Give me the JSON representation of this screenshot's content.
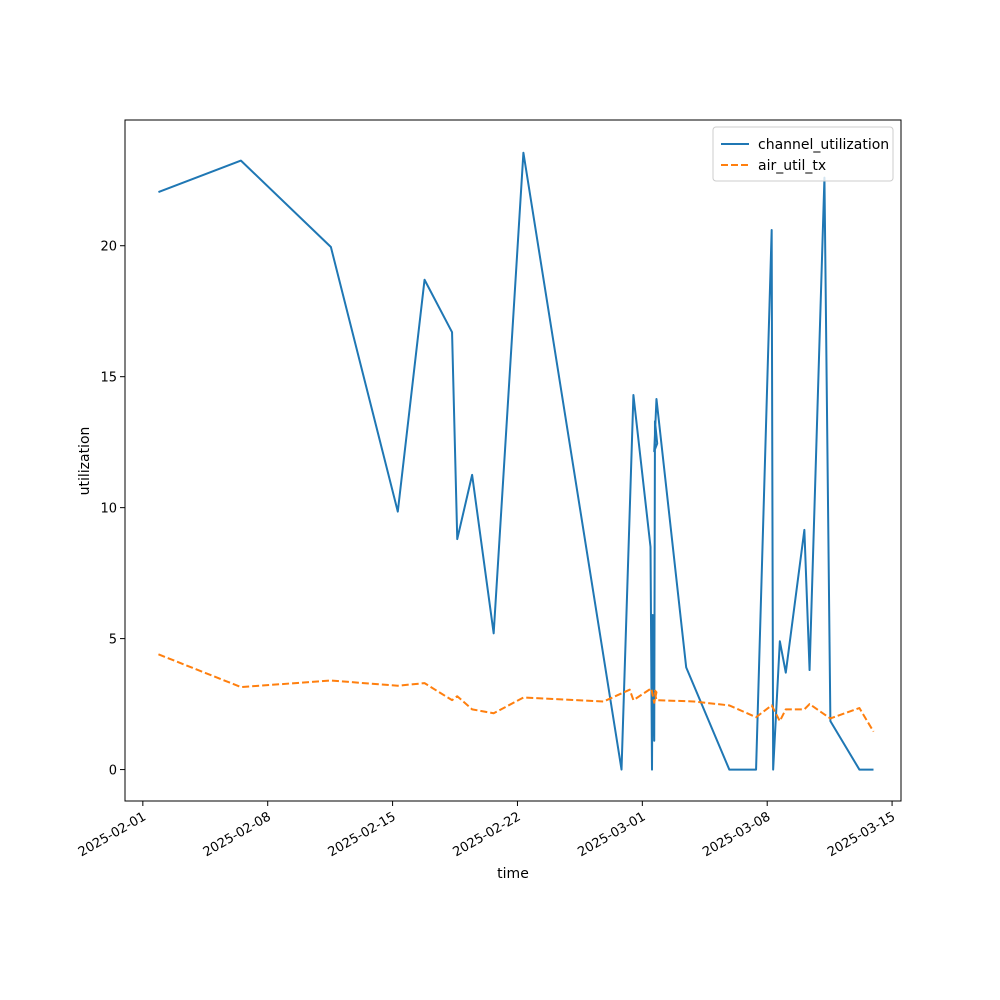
{
  "chart_data": {
    "type": "line",
    "title": "",
    "xlabel": "time",
    "ylabel": "utilization",
    "x_axis_type": "date",
    "xlim": [
      "2025-01-31 00:00",
      "2025-03-15 12:00"
    ],
    "ylim": [
      -1.2,
      24.8
    ],
    "x_ticks": [
      "2025-02-01",
      "2025-02-08",
      "2025-02-15",
      "2025-02-22",
      "2025-03-01",
      "2025-03-08",
      "2025-03-15"
    ],
    "y_ticks": [
      0,
      5,
      10,
      15,
      20
    ],
    "tick_label_rotation": -30,
    "grid": false,
    "legend": {
      "placement": "top-right",
      "entries": [
        "channel_utilization",
        "air_util_tx"
      ]
    },
    "colors": {
      "channel_utilization": "#1f77b4",
      "air_util_tx": "#ff7f0e"
    },
    "series": [
      {
        "name": "channel_utilization",
        "style": "solid",
        "points": [
          [
            "2025-02-01 21:00",
            22.05
          ],
          [
            "2025-02-06 12:00",
            23.25
          ],
          [
            "2025-02-11 13:00",
            19.95
          ],
          [
            "2025-02-15 07:00",
            9.85
          ],
          [
            "2025-02-16 19:00",
            18.7
          ],
          [
            "2025-02-18 08:00",
            16.7
          ],
          [
            "2025-02-18 15:00",
            8.8
          ],
          [
            "2025-02-19 11:00",
            11.25
          ],
          [
            "2025-02-20 16:00",
            5.2
          ],
          [
            "2025-02-22 08:00",
            23.55
          ],
          [
            "2025-02-27 20:00",
            0.0
          ],
          [
            "2025-02-28 12:00",
            14.3
          ],
          [
            "2025-02-29 11:00",
            8.5
          ],
          [
            "2025-02-29 13:00",
            0.0
          ],
          [
            "2025-02-29 14:00",
            5.9
          ],
          [
            "2025-02-29 16:00",
            1.1
          ],
          [
            "2025-02-29 17:00",
            13.3
          ],
          [
            "2025-02-29 20:00",
            12.45
          ],
          [
            "2025-03-01 16:00",
            12.15
          ],
          [
            "2025-03-01 19:00",
            14.15
          ],
          [
            "2025-03-03 11:00",
            3.9
          ],
          [
            "2025-03-05 21:00",
            0.0
          ],
          [
            "2025-03-07 09:00",
            0.0
          ],
          [
            "2025-03-08 06:00",
            20.6
          ],
          [
            "2025-03-08 08:00",
            0.0
          ],
          [
            "2025-03-08 17:00",
            4.9
          ],
          [
            "2025-03-09 01:00",
            3.7
          ],
          [
            "2025-03-10 02:00",
            9.15
          ],
          [
            "2025-03-10 09:00",
            3.8
          ],
          [
            "2025-03-11 05:00",
            22.6
          ],
          [
            "2025-03-11 13:00",
            1.85
          ],
          [
            "2025-03-13 04:00",
            0.0
          ],
          [
            "2025-03-13 23:00",
            0.0
          ]
        ]
      },
      {
        "name": "air_util_tx",
        "style": "dashed",
        "points": [
          [
            "2025-02-01 21:00",
            4.4
          ],
          [
            "2025-02-06 12:00",
            3.15
          ],
          [
            "2025-02-11 13:00",
            3.4
          ],
          [
            "2025-02-15 07:00",
            3.2
          ],
          [
            "2025-02-16 19:00",
            3.3
          ],
          [
            "2025-02-18 08:00",
            2.65
          ],
          [
            "2025-02-18 15:00",
            2.8
          ],
          [
            "2025-02-19 11:00",
            2.3
          ],
          [
            "2025-02-20 16:00",
            2.15
          ],
          [
            "2025-02-22 08:00",
            2.75
          ],
          [
            "2025-02-26 20:00",
            2.6
          ],
          [
            "2025-02-28 07:00",
            3.05
          ],
          [
            "2025-02-28 12:00",
            2.65
          ],
          [
            "2025-02-29 12:00",
            3.1
          ],
          [
            "2025-02-29 16:00",
            2.55
          ],
          [
            "2025-02-29 19:00",
            2.95
          ],
          [
            "2025-03-01 16:00",
            3.05
          ],
          [
            "2025-03-01 19:00",
            2.65
          ],
          [
            "2025-03-03 21:00",
            2.6
          ],
          [
            "2025-03-05 21:00",
            2.45
          ],
          [
            "2025-03-07 09:00",
            2.0
          ],
          [
            "2025-03-08 06:00",
            2.45
          ],
          [
            "2025-03-08 17:00",
            1.85
          ],
          [
            "2025-03-09 01:00",
            2.3
          ],
          [
            "2025-03-10 02:00",
            2.3
          ],
          [
            "2025-03-10 09:00",
            2.5
          ],
          [
            "2025-03-11 13:00",
            1.95
          ],
          [
            "2025-03-13 04:00",
            2.35
          ],
          [
            "2025-03-13 23:00",
            1.45
          ]
        ]
      }
    ]
  }
}
